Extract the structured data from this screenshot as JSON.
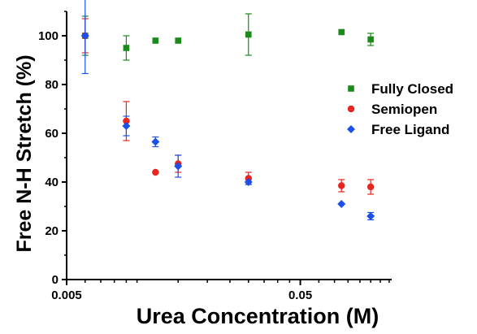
{
  "chart_data": {
    "type": "scatter",
    "xlabel": "Urea Concentration (M)",
    "ylabel": "Free N-H Stretch (%)",
    "xscale": "log",
    "xlim": [
      0.005,
      0.123
    ],
    "ylim": [
      0,
      110
    ],
    "x_tick_values": [
      0.005,
      0.05
    ],
    "x_tick_labels": [
      "0.005",
      "0.05"
    ],
    "y_tick_values": [
      0,
      20,
      40,
      60,
      80,
      100
    ],
    "y_tick_labels": [
      "0",
      "20",
      "40",
      "60",
      "80",
      "100"
    ],
    "grid": false,
    "legend_position": "right",
    "series": [
      {
        "name": "Fully Closed",
        "marker": "square",
        "color": "#1a8a1a",
        "points": [
          {
            "x": 0.006,
            "y": 100,
            "err": 8
          },
          {
            "x": 0.009,
            "y": 95,
            "err": 5
          },
          {
            "x": 0.012,
            "y": 98,
            "err": 0
          },
          {
            "x": 0.015,
            "y": 98,
            "err": 0
          },
          {
            "x": 0.03,
            "y": 100.5,
            "err": 8.5
          },
          {
            "x": 0.075,
            "y": 101.5,
            "err": 0
          },
          {
            "x": 0.1,
            "y": 98.5,
            "err": 2.5
          }
        ]
      },
      {
        "name": "Semiopen",
        "marker": "circle",
        "color": "#e8251e",
        "points": [
          {
            "x": 0.006,
            "y": 100,
            "err": 7
          },
          {
            "x": 0.009,
            "y": 65,
            "err": 8
          },
          {
            "x": 0.012,
            "y": 44,
            "err": 0
          },
          {
            "x": 0.015,
            "y": 47.5,
            "err": 3.5
          },
          {
            "x": 0.03,
            "y": 41.5,
            "err": 2.5
          },
          {
            "x": 0.075,
            "y": 38.5,
            "err": 2.5
          },
          {
            "x": 0.1,
            "y": 38,
            "err": 3
          }
        ]
      },
      {
        "name": "Free Ligand",
        "marker": "diamond",
        "color": "#1a4fe8",
        "points": [
          {
            "x": 0.006,
            "y": 100,
            "err": 15.5
          },
          {
            "x": 0.009,
            "y": 63,
            "err": 4
          },
          {
            "x": 0.012,
            "y": 56.5,
            "err": 2
          },
          {
            "x": 0.015,
            "y": 46.5,
            "err": 4.5
          },
          {
            "x": 0.03,
            "y": 40,
            "err": 1
          },
          {
            "x": 0.075,
            "y": 31,
            "err": 0
          },
          {
            "x": 0.1,
            "y": 26,
            "err": 1.5
          }
        ]
      }
    ]
  }
}
